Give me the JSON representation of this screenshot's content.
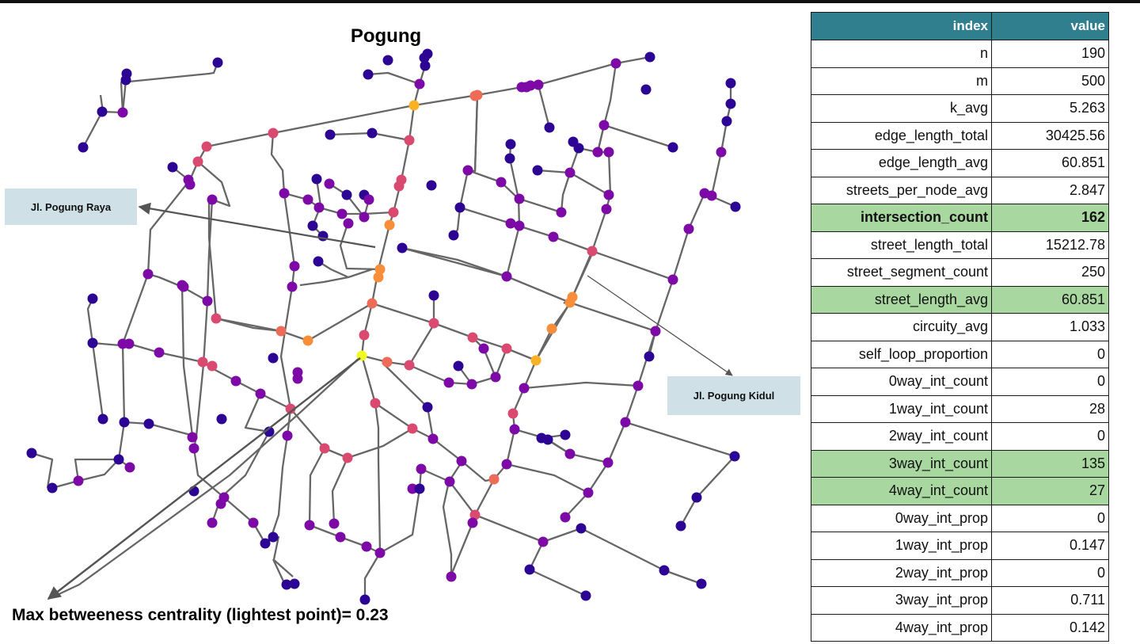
{
  "map": {
    "title": "Pogung",
    "callouts": {
      "raya": "Jl. Pogung Raya",
      "kidul": "Jl. Pogung Kidul"
    },
    "max_note": "Max betweeness centrality (lightest point)= 0.23",
    "colors": {
      "edge": "#666666",
      "node_low": "#2c0594",
      "node_mid": "#a21d9a",
      "node_high": "#f1844b",
      "node_max": "#f0f921",
      "callout_bg": "#cfe1e6"
    }
  },
  "table": {
    "headers": {
      "index": "index",
      "value": "value"
    },
    "header_color": "#2f7f8e",
    "highlight_color": "#a8d8a0",
    "rows": [
      {
        "index": "n",
        "value": "190"
      },
      {
        "index": "m",
        "value": "500"
      },
      {
        "index": "k_avg",
        "value": "5.263"
      },
      {
        "index": "edge_length_total",
        "value": "30425.56"
      },
      {
        "index": "edge_length_avg",
        "value": "60.851"
      },
      {
        "index": "streets_per_node_avg",
        "value": "2.847"
      },
      {
        "index": "intersection_count",
        "value": "162",
        "highlight": true,
        "bold": true
      },
      {
        "index": "street_length_total",
        "value": "15212.78"
      },
      {
        "index": "street_segment_count",
        "value": "250"
      },
      {
        "index": "street_length_avg",
        "value": "60.851",
        "highlight": true
      },
      {
        "index": "circuity_avg",
        "value": "1.033"
      },
      {
        "index": "self_loop_proportion",
        "value": "0"
      },
      {
        "index": "0way_int_count",
        "value": "0"
      },
      {
        "index": "1way_int_count",
        "value": "28"
      },
      {
        "index": "2way_int_count",
        "value": "0"
      },
      {
        "index": "3way_int_count",
        "value": "135",
        "highlight": true
      },
      {
        "index": "4way_int_count",
        "value": "27",
        "highlight": true
      },
      {
        "index": "0way_int_prop",
        "value": "0"
      },
      {
        "index": "1way_int_prop",
        "value": "0.147"
      },
      {
        "index": "2way_int_prop",
        "value": "0"
      },
      {
        "index": "3way_int_prop",
        "value": "0.711"
      },
      {
        "index": "4way_int_prop",
        "value": "0.142"
      }
    ]
  }
}
